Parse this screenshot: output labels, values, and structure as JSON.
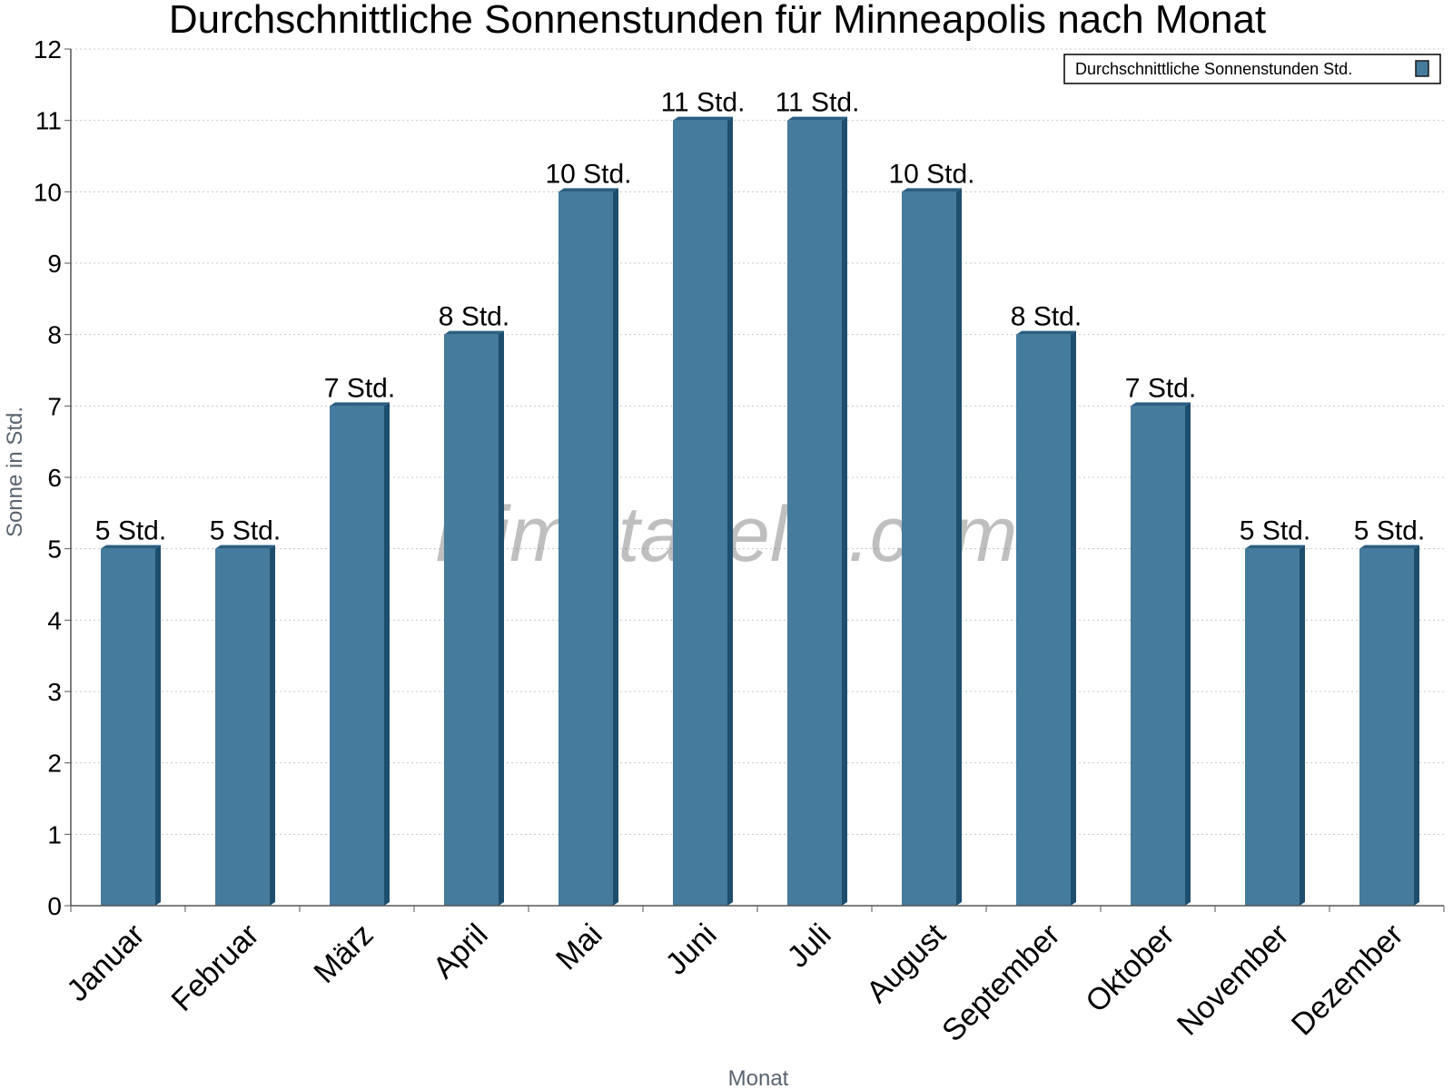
{
  "watermark": "klimatabelle.com",
  "colors": {
    "bar_face": "#457b9d",
    "bar_side": "#1d4e6e",
    "bar_top": "#2a5f82",
    "grid": "#c8c8c8",
    "axis": "#555555"
  },
  "chart_data": {
    "type": "bar",
    "title": "Durchschnittliche Sonnenstunden für Minneapolis nach Monat",
    "xlabel": "Monat",
    "ylabel": "Sonne in Std.",
    "ylim": [
      0,
      12
    ],
    "yticks": [
      0,
      1,
      2,
      3,
      4,
      5,
      6,
      7,
      8,
      9,
      10,
      11,
      12
    ],
    "grid": true,
    "legend_position": "top-right",
    "categories": [
      "Januar",
      "Februar",
      "März",
      "April",
      "Mai",
      "Juni",
      "Juli",
      "August",
      "September",
      "Oktober",
      "November",
      "Dezember"
    ],
    "series": [
      {
        "name": "Durchschnittliche Sonnenstunden Std.",
        "values": [
          5,
          5,
          7,
          8,
          10,
          11,
          11,
          10,
          8,
          7,
          5,
          5
        ],
        "data_labels": [
          "5 Std.",
          "5 Std.",
          "7 Std.",
          "8 Std.",
          "10 Std.",
          "11 Std.",
          "11 Std.",
          "10 Std.",
          "8 Std.",
          "7 Std.",
          "5 Std.",
          "5 Std."
        ]
      }
    ]
  }
}
